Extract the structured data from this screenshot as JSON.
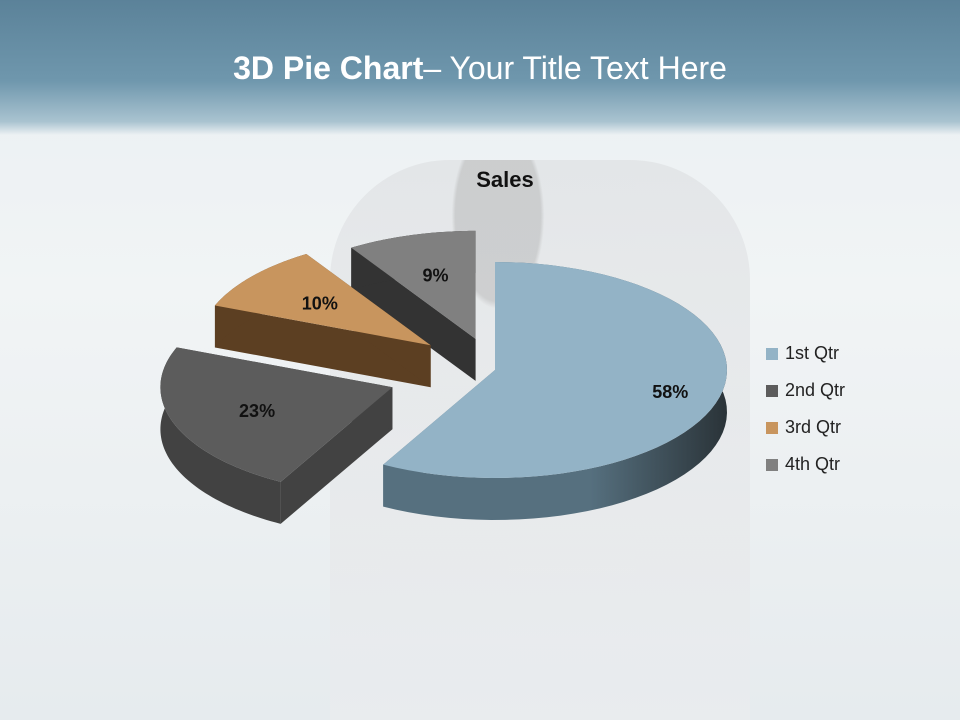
{
  "slide": {
    "title_bold": "3D Pie Chart",
    "title_rest": "– Your Title Text Here"
  },
  "chart_data": {
    "type": "pie",
    "title": "Sales",
    "three_d": true,
    "exploded": true,
    "categories": [
      "1st Qtr",
      "2nd Qtr",
      "3rd Qtr",
      "4th Qtr"
    ],
    "values": [
      58,
      23,
      10,
      9
    ],
    "data_labels": [
      "58%",
      "23%",
      "10%",
      "9%"
    ],
    "colors": [
      "#93b3c6",
      "#5c5c5c",
      "#c8955e",
      "#808080"
    ],
    "side_colors": [
      "#56707f",
      "#424242",
      "#5c3f22",
      "#333333"
    ],
    "legend_position": "right"
  }
}
